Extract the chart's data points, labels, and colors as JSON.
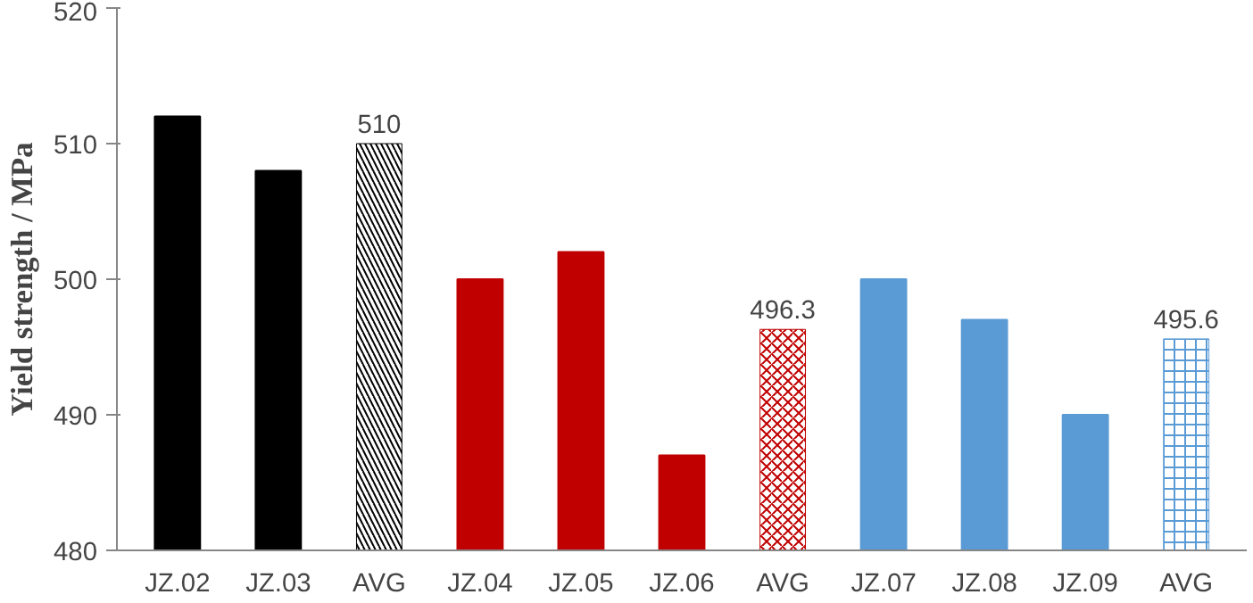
{
  "chart_data": {
    "type": "bar",
    "ylabel": "Yield strength / MPa",
    "categories": [
      "JZ.02",
      "JZ.03",
      "AVG",
      "JZ.04",
      "JZ.05",
      "JZ.06",
      "AVG",
      "JZ.07",
      "JZ.08",
      "JZ.09",
      "AVG"
    ],
    "values": [
      512,
      508,
      510,
      500,
      502,
      487,
      496.3,
      500,
      497,
      490,
      495.6
    ],
    "colors": [
      "#000000",
      "#000000",
      "#000000",
      "#c00000",
      "#c00000",
      "#c00000",
      "#c00000",
      "#5b9bd5",
      "#5b9bd5",
      "#5b9bd5",
      "#5b9bd5"
    ],
    "value_labels": [
      null,
      null,
      "510",
      null,
      null,
      null,
      "496.3",
      null,
      null,
      null,
      "495.6"
    ],
    "ylim": [
      480,
      520
    ],
    "yticks": [
      480,
      490,
      500,
      510,
      520
    ],
    "grid": false
  }
}
